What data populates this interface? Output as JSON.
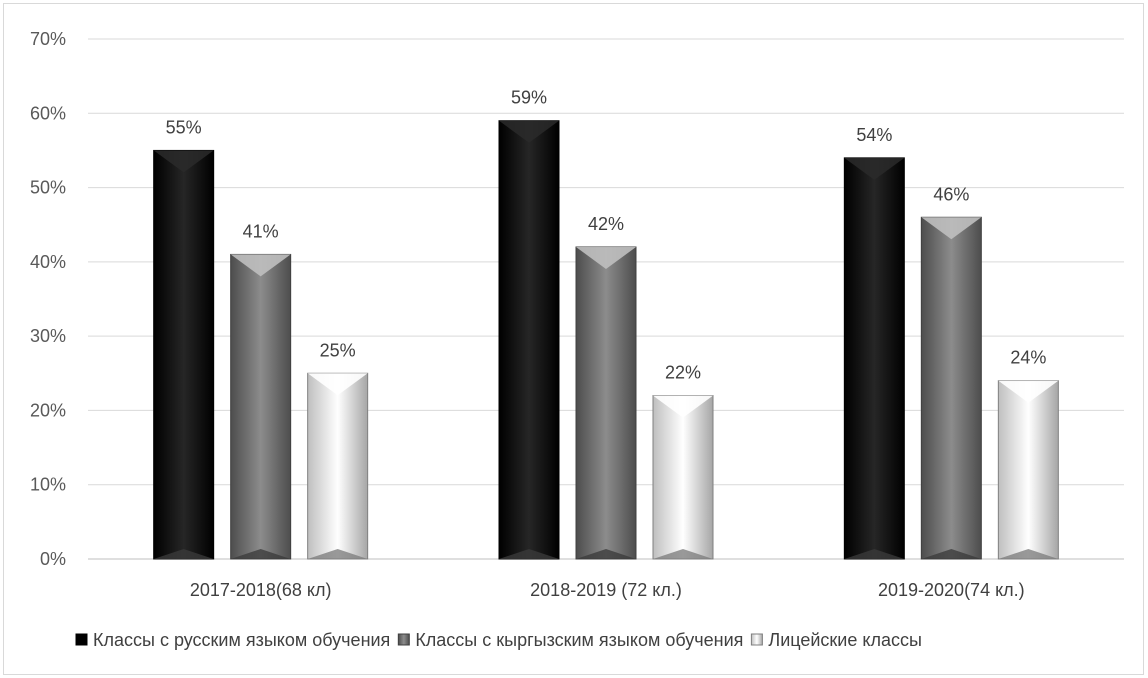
{
  "chart_data": {
    "type": "bar",
    "categories": [
      "2017-2018(68 кл)",
      "2018-2019 (72 кл.)",
      "2019-2020(74 кл.)"
    ],
    "series": [
      {
        "name": "Классы с русским языком обучения",
        "values": [
          55,
          59,
          54
        ],
        "labels": [
          "55%",
          "59%",
          "54%"
        ],
        "color": "#111111"
      },
      {
        "name": "Классы с кыргызским языком обучения",
        "values": [
          41,
          42,
          46
        ],
        "labels": [
          "41%",
          "42%",
          "46%"
        ],
        "color": "#7f7f7f"
      },
      {
        "name": "Лицейские классы",
        "values": [
          25,
          22,
          24
        ],
        "labels": [
          "25%",
          "22%",
          "24%"
        ],
        "color": "#f2f2f2"
      }
    ],
    "y_ticks": [
      "0%",
      "10%",
      "20%",
      "30%",
      "40%",
      "50%",
      "60%",
      "70%"
    ],
    "ylim": [
      0,
      70
    ],
    "title": "",
    "xlabel": "",
    "ylabel": "",
    "grid": true,
    "legend_position": "bottom"
  }
}
